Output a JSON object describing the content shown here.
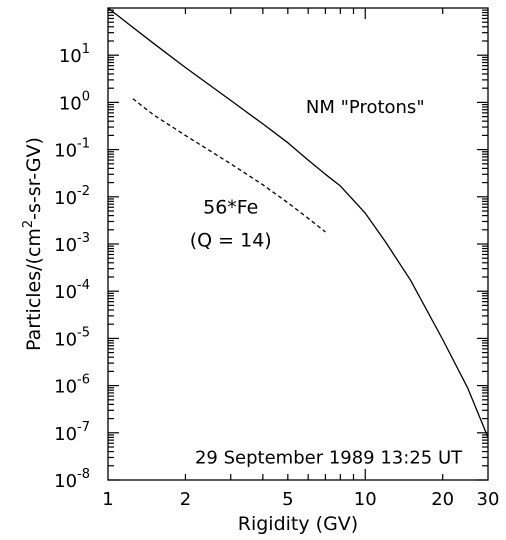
{
  "chart_data": {
    "type": "line",
    "title": "",
    "xlabel": "Rigidity (GV)",
    "ylabel_prefix": "Particles/(cm",
    "ylabel_sup": "2",
    "ylabel_suffix": "-s-sr-GV)",
    "x_scale": "log",
    "y_scale": "log",
    "xlim": [
      1,
      30
    ],
    "ylim": [
      1e-08,
      100
    ],
    "x_ticks": [
      {
        "value": 1,
        "label": "1"
      },
      {
        "value": 2,
        "label": "2"
      },
      {
        "value": 5,
        "label": "5"
      },
      {
        "value": 10,
        "label": "10"
      },
      {
        "value": 20,
        "label": "20"
      },
      {
        "value": 30,
        "label": "30"
      }
    ],
    "y_ticks": [
      {
        "value": 1e-08,
        "exp": "-8"
      },
      {
        "value": 1e-07,
        "exp": "-7"
      },
      {
        "value": 1e-06,
        "exp": "-6"
      },
      {
        "value": 1e-05,
        "exp": "-5"
      },
      {
        "value": 0.0001,
        "exp": "-4"
      },
      {
        "value": 0.001,
        "exp": "-3"
      },
      {
        "value": 0.01,
        "exp": "-2"
      },
      {
        "value": 0.1,
        "exp": "-1"
      },
      {
        "value": 1,
        "exp": "0"
      },
      {
        "value": 10,
        "exp": "1"
      }
    ],
    "y_tick_base": "10",
    "grid": false,
    "series": [
      {
        "name": "NM \"Protons\"",
        "style": "solid",
        "color": "#000000",
        "x": [
          1.0,
          1.5,
          2.0,
          3.0,
          4.0,
          5.0,
          6.0,
          7.0,
          8.0,
          10.0,
          12.0,
          15.0,
          20.0,
          25.0,
          30.0
        ],
        "y": [
          100,
          18,
          5.5,
          1.1,
          0.35,
          0.14,
          0.06,
          0.03,
          0.017,
          0.0045,
          0.0011,
          0.00017,
          9.5e-06,
          9e-07,
          8e-08
        ]
      },
      {
        "name": "56*Fe",
        "style": "dashed",
        "color": "#000000",
        "x": [
          1.25,
          1.5,
          2.0,
          3.0,
          4.0,
          5.0,
          6.0,
          7.0
        ],
        "y": [
          1.2,
          0.55,
          0.2,
          0.05,
          0.018,
          0.0075,
          0.0035,
          0.0018
        ]
      }
    ],
    "annotations": [
      {
        "id": "protons",
        "text": "NM \"Protons\"",
        "x": 10,
        "y": 0.8
      },
      {
        "id": "fe",
        "text": "56*Fe",
        "x": 3.0,
        "y": 0.006
      },
      {
        "id": "charge",
        "text": "(Q = 14)",
        "x": 3.0,
        "y": 0.0012
      },
      {
        "id": "date",
        "text": "29 September 1989 13:25 UT",
        "x": 7.2,
        "y": 3e-08
      }
    ]
  }
}
